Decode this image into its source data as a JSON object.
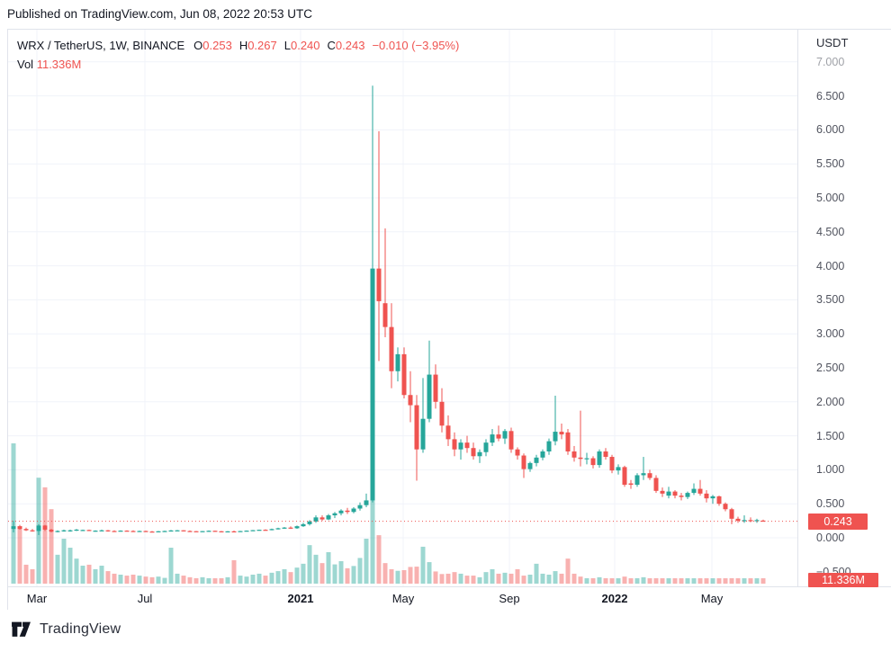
{
  "header": {
    "published_text": "Published on TradingView.com, Jun 08, 2022 20:53 UTC"
  },
  "legend": {
    "symbol": "WRX / TetherUS, 1W, BINANCE",
    "ohlc": [
      {
        "label": "O",
        "value": "0.253"
      },
      {
        "label": "H",
        "value": "0.267"
      },
      {
        "label": "L",
        "value": "0.240"
      },
      {
        "label": "C",
        "value": "0.243"
      },
      {
        "label": "",
        "value": "−0.010 (−3.95%)"
      }
    ],
    "vol_label": "Vol",
    "vol_value": "11.336M"
  },
  "price_axis": {
    "currency": "USDT",
    "ticks": [
      {
        "text": "7.000",
        "price": 7.0,
        "faded": true
      },
      {
        "text": "6.500",
        "price": 6.5
      },
      {
        "text": "6.000",
        "price": 6.0
      },
      {
        "text": "5.500",
        "price": 5.5
      },
      {
        "text": "5.000",
        "price": 5.0
      },
      {
        "text": "4.500",
        "price": 4.5
      },
      {
        "text": "4.000",
        "price": 4.0
      },
      {
        "text": "3.500",
        "price": 3.5
      },
      {
        "text": "3.000",
        "price": 3.0
      },
      {
        "text": "2.500",
        "price": 2.5
      },
      {
        "text": "2.000",
        "price": 2.0
      },
      {
        "text": "1.500",
        "price": 1.5
      },
      {
        "text": "1.000",
        "price": 1.0
      },
      {
        "text": "0.500",
        "price": 0.5
      },
      {
        "text": "0.000",
        "price": 0.0
      },
      {
        "text": "−0.500",
        "price": -0.5
      }
    ],
    "price_badge": "0.243",
    "volume_badge": "11.336M"
  },
  "time_axis": {
    "labels": [
      {
        "text": "Mar",
        "x": 40,
        "bold": false
      },
      {
        "text": "Jul",
        "x": 160,
        "bold": false
      },
      {
        "text": "2021",
        "x": 333,
        "bold": true
      },
      {
        "text": "May",
        "x": 447,
        "bold": false
      },
      {
        "text": "Sep",
        "x": 565,
        "bold": false
      },
      {
        "text": "2022",
        "x": 682,
        "bold": true
      },
      {
        "text": "May",
        "x": 790,
        "bold": false
      }
    ]
  },
  "footer": {
    "brand": "TradingView"
  },
  "colors": {
    "up": "#26a69a",
    "down": "#ef5350",
    "up_vol": "rgba(38,166,154,0.45)",
    "down_vol": "rgba(239,83,80,0.45)",
    "badge": "#ef5350",
    "grid": "#f0f3fa",
    "border": "#e0e3eb",
    "price_line": "#ef5350"
  },
  "chart_data": {
    "type": "candlestick+volume",
    "title": "WRX / TetherUS, 1W, BINANCE",
    "symbol": "WRX/USDT",
    "interval": "1W",
    "exchange": "BINANCE",
    "last": {
      "open": 0.253,
      "high": 0.267,
      "low": 0.24,
      "close": 0.243,
      "change": -0.01,
      "change_pct": -3.95,
      "volume_m": 11.336
    },
    "ylim": [
      -0.6,
      7.3
    ],
    "yticks_step": 0.5,
    "price_line": 0.243,
    "x_range_note": "weekly candles, Feb 2020 to Jun 2022",
    "volume_unit": "millions (estimated; last bar labeled 11.336M)",
    "candles_format": [
      "open",
      "high",
      "low",
      "close",
      "volume_m"
    ],
    "candles": [
      [
        0.13,
        0.25,
        0.08,
        0.17,
        437
      ],
      [
        0.17,
        0.19,
        0.12,
        0.13,
        179
      ],
      [
        0.13,
        0.15,
        0.1,
        0.11,
        59
      ],
      [
        0.11,
        0.13,
        0.09,
        0.1,
        45
      ],
      [
        0.1,
        0.2,
        0.04,
        0.18,
        330
      ],
      [
        0.18,
        0.19,
        0.1,
        0.12,
        300
      ],
      [
        0.12,
        0.13,
        0.08,
        0.09,
        232
      ],
      [
        0.09,
        0.11,
        0.08,
        0.1,
        90
      ],
      [
        0.1,
        0.12,
        0.09,
        0.11,
        140
      ],
      [
        0.1,
        0.12,
        0.09,
        0.11,
        112
      ],
      [
        0.11,
        0.13,
        0.1,
        0.12,
        78
      ],
      [
        0.11,
        0.12,
        0.1,
        0.115,
        56
      ],
      [
        0.115,
        0.12,
        0.1,
        0.105,
        59
      ],
      [
        0.1,
        0.11,
        0.09,
        0.105,
        45
      ],
      [
        0.105,
        0.12,
        0.1,
        0.11,
        56
      ],
      [
        0.11,
        0.115,
        0.09,
        0.1,
        39
      ],
      [
        0.1,
        0.11,
        0.09,
        0.095,
        31
      ],
      [
        0.095,
        0.11,
        0.095,
        0.105,
        28
      ],
      [
        0.105,
        0.11,
        0.095,
        0.1,
        25
      ],
      [
        0.1,
        0.11,
        0.09,
        0.095,
        28
      ],
      [
        0.095,
        0.105,
        0.09,
        0.1,
        25
      ],
      [
        0.1,
        0.105,
        0.09,
        0.092,
        22
      ],
      [
        0.092,
        0.1,
        0.08,
        0.088,
        20
      ],
      [
        0.088,
        0.1,
        0.085,
        0.096,
        22
      ],
      [
        0.096,
        0.105,
        0.09,
        0.1,
        18
      ],
      [
        0.1,
        0.115,
        0.092,
        0.108,
        112
      ],
      [
        0.108,
        0.115,
        0.1,
        0.11,
        31
      ],
      [
        0.11,
        0.112,
        0.095,
        0.1,
        25
      ],
      [
        0.1,
        0.108,
        0.092,
        0.097,
        20
      ],
      [
        0.097,
        0.1,
        0.088,
        0.092,
        17
      ],
      [
        0.092,
        0.1,
        0.09,
        0.098,
        20
      ],
      [
        0.098,
        0.108,
        0.094,
        0.103,
        17
      ],
      [
        0.103,
        0.105,
        0.092,
        0.096,
        14
      ],
      [
        0.096,
        0.1,
        0.082,
        0.088,
        17
      ],
      [
        0.088,
        0.098,
        0.085,
        0.095,
        20
      ],
      [
        0.095,
        0.105,
        0.088,
        0.092,
        73
      ],
      [
        0.092,
        0.102,
        0.09,
        0.099,
        25
      ],
      [
        0.099,
        0.108,
        0.096,
        0.105,
        22
      ],
      [
        0.105,
        0.115,
        0.1,
        0.112,
        28
      ],
      [
        0.112,
        0.12,
        0.108,
        0.118,
        31
      ],
      [
        0.118,
        0.125,
        0.108,
        0.113,
        25
      ],
      [
        0.113,
        0.135,
        0.11,
        0.128,
        34
      ],
      [
        0.128,
        0.148,
        0.122,
        0.14,
        39
      ],
      [
        0.14,
        0.158,
        0.132,
        0.15,
        45
      ],
      [
        0.15,
        0.168,
        0.13,
        0.14,
        36
      ],
      [
        0.14,
        0.18,
        0.132,
        0.17,
        50
      ],
      [
        0.17,
        0.22,
        0.16,
        0.2,
        62
      ],
      [
        0.2,
        0.26,
        0.18,
        0.24,
        120
      ],
      [
        0.24,
        0.33,
        0.22,
        0.3,
        90
      ],
      [
        0.3,
        0.33,
        0.25,
        0.27,
        64
      ],
      [
        0.27,
        0.35,
        0.26,
        0.33,
        98
      ],
      [
        0.33,
        0.38,
        0.29,
        0.36,
        60
      ],
      [
        0.36,
        0.42,
        0.33,
        0.4,
        70
      ],
      [
        0.4,
        0.44,
        0.35,
        0.38,
        48
      ],
      [
        0.38,
        0.45,
        0.36,
        0.43,
        55
      ],
      [
        0.43,
        0.52,
        0.4,
        0.48,
        80
      ],
      [
        0.48,
        0.65,
        0.45,
        0.55,
        140
      ],
      [
        0.55,
        6.65,
        0.52,
        3.96,
        317
      ],
      [
        3.96,
        5.98,
        2.6,
        3.48,
        151
      ],
      [
        3.45,
        4.55,
        2.95,
        3.1,
        64
      ],
      [
        3.1,
        3.45,
        2.2,
        2.45,
        45
      ],
      [
        2.45,
        2.8,
        2.3,
        2.7,
        40
      ],
      [
        2.7,
        2.8,
        2.05,
        2.1,
        42
      ],
      [
        2.1,
        2.45,
        1.7,
        1.95,
        52
      ],
      [
        1.95,
        2.1,
        0.84,
        1.3,
        53
      ],
      [
        1.3,
        2.35,
        1.25,
        1.75,
        115
      ],
      [
        1.75,
        2.9,
        1.7,
        2.4,
        67
      ],
      [
        2.4,
        2.55,
        1.9,
        2.0,
        38
      ],
      [
        2.0,
        2.2,
        1.55,
        1.65,
        30
      ],
      [
        1.65,
        1.8,
        1.35,
        1.45,
        31
      ],
      [
        1.45,
        1.55,
        1.2,
        1.3,
        36
      ],
      [
        1.3,
        1.45,
        1.15,
        1.4,
        31
      ],
      [
        1.4,
        1.5,
        1.25,
        1.32,
        25
      ],
      [
        1.32,
        1.4,
        1.15,
        1.2,
        25
      ],
      [
        1.2,
        1.3,
        1.1,
        1.26,
        20
      ],
      [
        1.26,
        1.45,
        1.2,
        1.4,
        36
      ],
      [
        1.4,
        1.6,
        1.35,
        1.52,
        45
      ],
      [
        1.52,
        1.65,
        1.42,
        1.46,
        31
      ],
      [
        1.46,
        1.6,
        1.38,
        1.57,
        34
      ],
      [
        1.57,
        1.62,
        1.25,
        1.3,
        31
      ],
      [
        1.3,
        1.33,
        1.15,
        1.21,
        45
      ],
      [
        1.21,
        1.24,
        0.88,
        1.01,
        25
      ],
      [
        1.01,
        1.12,
        0.97,
        1.1,
        28
      ],
      [
        1.1,
        1.22,
        1.05,
        1.18,
        62
      ],
      [
        1.18,
        1.3,
        1.14,
        1.27,
        31
      ],
      [
        1.27,
        1.46,
        1.22,
        1.42,
        28
      ],
      [
        1.42,
        2.09,
        1.36,
        1.56,
        39
      ],
      [
        1.56,
        1.68,
        1.45,
        1.52,
        31
      ],
      [
        1.55,
        1.6,
        1.22,
        1.27,
        78
      ],
      [
        1.27,
        1.35,
        1.12,
        1.18,
        31
      ],
      [
        1.18,
        1.87,
        1.05,
        1.16,
        22
      ],
      [
        1.16,
        1.25,
        1.08,
        1.17,
        17
      ],
      [
        1.17,
        1.2,
        1.02,
        1.07,
        17
      ],
      [
        1.07,
        1.3,
        1.03,
        1.27,
        20
      ],
      [
        1.27,
        1.32,
        1.15,
        1.19,
        17
      ],
      [
        1.19,
        1.22,
        0.95,
        0.99,
        14
      ],
      [
        0.99,
        1.08,
        0.93,
        1.04,
        14
      ],
      [
        1.04,
        1.06,
        0.75,
        0.78,
        22
      ],
      [
        0.8,
        0.85,
        0.72,
        0.78,
        14
      ],
      [
        0.78,
        0.95,
        0.75,
        0.92,
        17
      ],
      [
        0.92,
        1.19,
        0.85,
        0.95,
        20
      ],
      [
        0.95,
        1.0,
        0.85,
        0.88,
        14
      ],
      [
        0.88,
        0.92,
        0.66,
        0.69,
        17
      ],
      [
        0.69,
        0.74,
        0.6,
        0.65,
        14
      ],
      [
        0.62,
        0.75,
        0.58,
        0.68,
        11
      ],
      [
        0.68,
        0.7,
        0.58,
        0.62,
        10
      ],
      [
        0.62,
        0.66,
        0.55,
        0.6,
        8
      ],
      [
        0.6,
        0.68,
        0.57,
        0.66,
        10
      ],
      [
        0.66,
        0.8,
        0.63,
        0.72,
        13
      ],
      [
        0.72,
        0.85,
        0.62,
        0.65,
        14
      ],
      [
        0.65,
        0.7,
        0.52,
        0.58,
        11
      ],
      [
        0.58,
        0.63,
        0.5,
        0.61,
        10
      ],
      [
        0.61,
        0.62,
        0.47,
        0.5,
        8
      ],
      [
        0.5,
        0.52,
        0.39,
        0.42,
        10
      ],
      [
        0.42,
        0.44,
        0.2,
        0.28,
        17
      ],
      [
        0.28,
        0.31,
        0.22,
        0.25,
        8
      ],
      [
        0.25,
        0.33,
        0.22,
        0.26,
        7
      ],
      [
        0.26,
        0.3,
        0.23,
        0.25,
        8
      ],
      [
        0.25,
        0.28,
        0.22,
        0.26,
        6
      ],
      [
        0.253,
        0.267,
        0.24,
        0.243,
        11.336
      ]
    ]
  }
}
